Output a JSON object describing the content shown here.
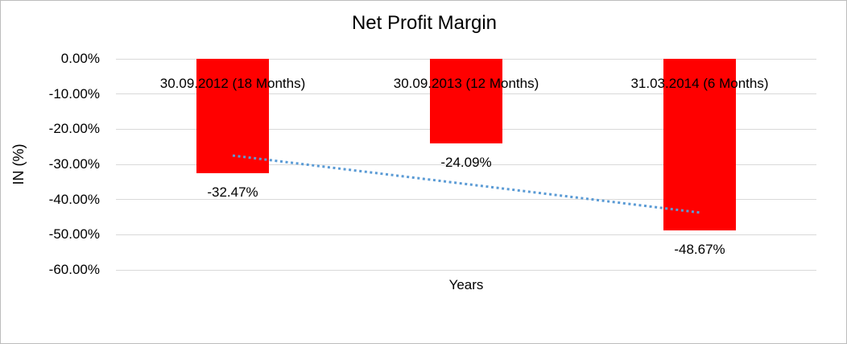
{
  "frame": {
    "background": "#FFFFFF",
    "border_color": "#BDBDBD"
  },
  "chart_data": {
    "type": "bar",
    "title": "Net Profit Margin",
    "xlabel": "Years",
    "ylabel": "IN (%)",
    "categories": [
      "30.09.2012 (18 Months)",
      "30.09.2013 (12 Months)",
      "31.03.2014 (6 Months)"
    ],
    "series": [
      {
        "name": "Net Profit Margin",
        "values": [
          -32.47,
          -24.09,
          -48.67
        ],
        "data_labels": [
          "-32.47%",
          "-24.09%",
          "-48.67%"
        ],
        "color": "#FF0000"
      }
    ],
    "ylim": [
      -60,
      0
    ],
    "yticks": [
      0,
      -10,
      -20,
      -30,
      -40,
      -50,
      -60
    ],
    "ytick_labels": [
      "0.00%",
      "-10.00%",
      "-20.00%",
      "-30.00%",
      "-40.00%",
      "-50.00%",
      "-60.00%"
    ],
    "grid": true,
    "gridline_color": "#D9D9D9",
    "legend": "none",
    "trendline": {
      "type": "linear",
      "style": "dotted",
      "color": "#5B9BD5",
      "from_category_index": 0,
      "to_category_index": 2,
      "y_start": -27.5,
      "y_end": -43.7
    }
  }
}
